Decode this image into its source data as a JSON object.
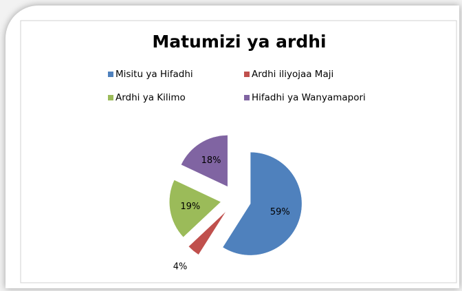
{
  "chart_data": {
    "type": "pie",
    "title": "Matumizi ya ardhi",
    "categories": [
      "Misitu ya Hifadhi",
      "Ardhi iliyojaa Maji",
      "Ardhi ya Kilimo",
      "Hifadhi ya Wanyamapori"
    ],
    "values": [
      59,
      4,
      19,
      18
    ],
    "value_labels": [
      "59%",
      "4%",
      "19%",
      "18%"
    ],
    "colors": [
      "#4f81bd",
      "#c0504d",
      "#9bbb59",
      "#8064a2"
    ],
    "legend": "top"
  }
}
